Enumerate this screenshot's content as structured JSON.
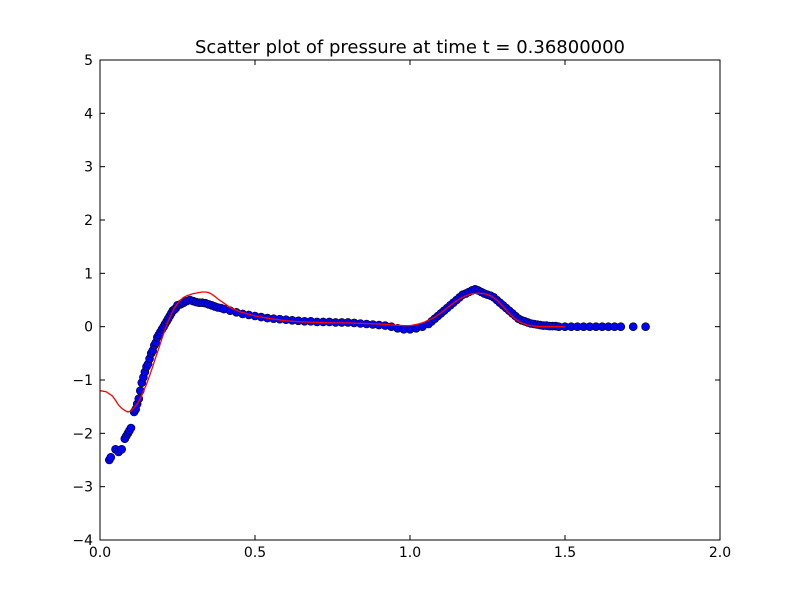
{
  "chart_data": {
    "type": "scatter",
    "title": "Scatter plot of pressure at time t =     0.36800000",
    "xlabel": "",
    "ylabel": "",
    "xlim": [
      0.0,
      2.0
    ],
    "ylim": [
      -4,
      5
    ],
    "x_ticks": [
      "0.0",
      "0.5",
      "1.0",
      "1.5",
      "2.0"
    ],
    "y_ticks": [
      "−4",
      "−3",
      "−2",
      "−1",
      "0",
      "1",
      "2",
      "3",
      "4",
      "5"
    ],
    "grid": false,
    "legend": "none",
    "series": [
      {
        "kind": "scatter",
        "color": "#0000ff",
        "edge_color": "#000000",
        "x": [
          0.03,
          0.035,
          0.05,
          0.06,
          0.07,
          0.08,
          0.085,
          0.09,
          0.095,
          0.1,
          0.11,
          0.115,
          0.12,
          0.125,
          0.13,
          0.135,
          0.14,
          0.145,
          0.15,
          0.155,
          0.16,
          0.165,
          0.17,
          0.175,
          0.18,
          0.185,
          0.19,
          0.195,
          0.2,
          0.205,
          0.21,
          0.215,
          0.22,
          0.225,
          0.23,
          0.235,
          0.24,
          0.245,
          0.25,
          0.26,
          0.265,
          0.27,
          0.28,
          0.29,
          0.3,
          0.31,
          0.32,
          0.33,
          0.34,
          0.35,
          0.36,
          0.37,
          0.38,
          0.39,
          0.4,
          0.42,
          0.44,
          0.46,
          0.48,
          0.5,
          0.52,
          0.54,
          0.56,
          0.58,
          0.6,
          0.62,
          0.64,
          0.66,
          0.68,
          0.7,
          0.72,
          0.74,
          0.76,
          0.78,
          0.8,
          0.82,
          0.84,
          0.86,
          0.88,
          0.9,
          0.92,
          0.94,
          0.96,
          0.98,
          1.0,
          1.02,
          1.04,
          1.06,
          1.07,
          1.08,
          1.09,
          1.1,
          1.11,
          1.12,
          1.13,
          1.14,
          1.15,
          1.16,
          1.17,
          1.18,
          1.19,
          1.2,
          1.21,
          1.22,
          1.23,
          1.24,
          1.25,
          1.26,
          1.27,
          1.28,
          1.29,
          1.3,
          1.31,
          1.32,
          1.33,
          1.34,
          1.35,
          1.36,
          1.37,
          1.38,
          1.39,
          1.4,
          1.41,
          1.42,
          1.43,
          1.44,
          1.45,
          1.46,
          1.47,
          1.48,
          1.5,
          1.52,
          1.54,
          1.56,
          1.58,
          1.6,
          1.62,
          1.64,
          1.66,
          1.68,
          1.72,
          1.76
        ],
        "y": [
          -2.5,
          -2.45,
          -2.3,
          -2.35,
          -2.3,
          -2.1,
          -2.05,
          -2.0,
          -1.95,
          -1.9,
          -1.6,
          -1.55,
          -1.45,
          -1.35,
          -1.2,
          -1.05,
          -0.95,
          -0.85,
          -0.75,
          -0.7,
          -0.6,
          -0.5,
          -0.45,
          -0.35,
          -0.3,
          -0.2,
          -0.15,
          -0.1,
          -0.05,
          0.0,
          0.05,
          0.1,
          0.15,
          0.2,
          0.25,
          0.3,
          0.32,
          0.35,
          0.4,
          0.42,
          0.44,
          0.45,
          0.48,
          0.5,
          0.48,
          0.46,
          0.45,
          0.45,
          0.44,
          0.42,
          0.4,
          0.38,
          0.36,
          0.35,
          0.33,
          0.3,
          0.27,
          0.24,
          0.22,
          0.2,
          0.18,
          0.16,
          0.15,
          0.14,
          0.13,
          0.12,
          0.11,
          0.1,
          0.1,
          0.09,
          0.09,
          0.09,
          0.08,
          0.08,
          0.08,
          0.07,
          0.06,
          0.05,
          0.04,
          0.03,
          0.02,
          0.0,
          -0.03,
          -0.05,
          -0.05,
          -0.03,
          0.0,
          0.05,
          0.1,
          0.15,
          0.2,
          0.25,
          0.3,
          0.35,
          0.4,
          0.45,
          0.5,
          0.55,
          0.6,
          0.62,
          0.65,
          0.68,
          0.7,
          0.68,
          0.65,
          0.62,
          0.6,
          0.58,
          0.55,
          0.5,
          0.45,
          0.4,
          0.35,
          0.3,
          0.25,
          0.2,
          0.15,
          0.12,
          0.1,
          0.08,
          0.06,
          0.05,
          0.04,
          0.03,
          0.02,
          0.02,
          0.01,
          0.01,
          0.01,
          0.0,
          0.0,
          0.0,
          0.0,
          0.0,
          0.0,
          0.0,
          0.0,
          0.0,
          0.0,
          0.0,
          0.0,
          0.0
        ]
      },
      {
        "kind": "line",
        "color": "#ff0000",
        "x": [
          0.0,
          0.02,
          0.04,
          0.05,
          0.06,
          0.07,
          0.08,
          0.09,
          0.1,
          0.11,
          0.12,
          0.13,
          0.14,
          0.15,
          0.16,
          0.17,
          0.18,
          0.19,
          0.2,
          0.21,
          0.22,
          0.23,
          0.24,
          0.25,
          0.26,
          0.27,
          0.28,
          0.29,
          0.3,
          0.31,
          0.32,
          0.33,
          0.34,
          0.35,
          0.36,
          0.37,
          0.38,
          0.4,
          0.42,
          0.45,
          0.5,
          0.55,
          0.6,
          0.65,
          0.7,
          0.75,
          0.8,
          0.85,
          0.9,
          0.95,
          0.98,
          1.0,
          1.02,
          1.04,
          1.06,
          1.08,
          1.1,
          1.12,
          1.14,
          1.16,
          1.18,
          1.2,
          1.22,
          1.24,
          1.26,
          1.28,
          1.3,
          1.32,
          1.34,
          1.36,
          1.38,
          1.4,
          1.42,
          1.44,
          1.46,
          1.48,
          1.5
        ],
        "y": [
          -1.2,
          -1.22,
          -1.3,
          -1.38,
          -1.47,
          -1.53,
          -1.57,
          -1.6,
          -1.58,
          -1.52,
          -1.45,
          -1.35,
          -1.22,
          -1.08,
          -0.92,
          -0.75,
          -0.57,
          -0.4,
          -0.22,
          -0.05,
          0.1,
          0.23,
          0.35,
          0.43,
          0.5,
          0.55,
          0.58,
          0.6,
          0.62,
          0.63,
          0.64,
          0.65,
          0.65,
          0.64,
          0.61,
          0.57,
          0.52,
          0.44,
          0.36,
          0.28,
          0.2,
          0.15,
          0.11,
          0.09,
          0.08,
          0.07,
          0.07,
          0.06,
          0.05,
          0.03,
          0.02,
          0.02,
          0.04,
          0.07,
          0.12,
          0.18,
          0.26,
          0.35,
          0.44,
          0.52,
          0.58,
          0.62,
          0.63,
          0.62,
          0.58,
          0.5,
          0.38,
          0.25,
          0.14,
          0.07,
          0.03,
          0.01,
          0.0,
          0.0,
          0.0,
          0.0,
          0.0
        ]
      }
    ]
  }
}
